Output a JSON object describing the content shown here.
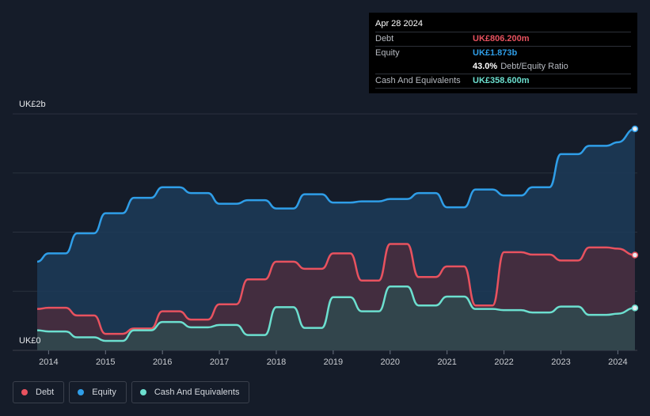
{
  "tooltip": {
    "date": "Apr 28 2024",
    "rows": [
      {
        "label": "Debt",
        "value": "UK£806.200m",
        "color": "#e8525f"
      },
      {
        "label": "Equity",
        "value": "UK£1.873b",
        "color": "#2f9ee8"
      },
      {
        "label": "",
        "value": "43.0%",
        "extra": "Debt/Equity Ratio",
        "color": "#ffffff"
      },
      {
        "label": "Cash And Equivalents",
        "value": "UK£358.600m",
        "color": "#6cdfcf"
      }
    ]
  },
  "legend": [
    {
      "label": "Debt",
      "color": "#e8525f"
    },
    {
      "label": "Equity",
      "color": "#2f9ee8"
    },
    {
      "label": "Cash And Equivalents",
      "color": "#6cdfcf"
    }
  ],
  "chart_data": {
    "type": "area",
    "title": "",
    "xlabel": "",
    "ylabel": "",
    "y_top_label": "UK£2b",
    "y_bottom_label": "UK£0",
    "ylim": [
      0,
      2000
    ],
    "xlim": [
      2013.8,
      2024.3
    ],
    "x_ticks": [
      2014,
      2015,
      2016,
      2017,
      2018,
      2019,
      2020,
      2021,
      2022,
      2023,
      2024
    ],
    "x_tick_labels": [
      "2014",
      "2015",
      "2016",
      "2017",
      "2018",
      "2019",
      "2020",
      "2021",
      "2022",
      "2023",
      "2024"
    ],
    "series": [
      {
        "name": "Equity",
        "color": "#2f9ee8",
        "fill": "#1c3b58",
        "points": [
          [
            2013.8,
            750
          ],
          [
            2014.0,
            820
          ],
          [
            2014.3,
            820
          ],
          [
            2014.5,
            990
          ],
          [
            2014.8,
            990
          ],
          [
            2015.0,
            1160
          ],
          [
            2015.3,
            1160
          ],
          [
            2015.5,
            1290
          ],
          [
            2015.8,
            1290
          ],
          [
            2016.0,
            1380
          ],
          [
            2016.3,
            1380
          ],
          [
            2016.5,
            1330
          ],
          [
            2016.8,
            1330
          ],
          [
            2017.0,
            1240
          ],
          [
            2017.3,
            1240
          ],
          [
            2017.5,
            1270
          ],
          [
            2017.8,
            1270
          ],
          [
            2018.0,
            1200
          ],
          [
            2018.3,
            1200
          ],
          [
            2018.5,
            1320
          ],
          [
            2018.8,
            1320
          ],
          [
            2019.0,
            1250
          ],
          [
            2019.3,
            1250
          ],
          [
            2019.5,
            1260
          ],
          [
            2019.8,
            1260
          ],
          [
            2020.0,
            1280
          ],
          [
            2020.3,
            1280
          ],
          [
            2020.5,
            1330
          ],
          [
            2020.8,
            1330
          ],
          [
            2021.0,
            1210
          ],
          [
            2021.3,
            1210
          ],
          [
            2021.5,
            1360
          ],
          [
            2021.8,
            1360
          ],
          [
            2022.0,
            1310
          ],
          [
            2022.3,
            1310
          ],
          [
            2022.5,
            1380
          ],
          [
            2022.8,
            1380
          ],
          [
            2023.0,
            1660
          ],
          [
            2023.3,
            1660
          ],
          [
            2023.5,
            1730
          ],
          [
            2023.8,
            1730
          ],
          [
            2024.0,
            1760
          ],
          [
            2024.3,
            1873
          ]
        ]
      },
      {
        "name": "Debt",
        "color": "#e8525f",
        "fill": "#4a2b3c",
        "points": [
          [
            2013.8,
            350
          ],
          [
            2014.0,
            360
          ],
          [
            2014.3,
            360
          ],
          [
            2014.5,
            295
          ],
          [
            2014.8,
            295
          ],
          [
            2015.0,
            140
          ],
          [
            2015.3,
            140
          ],
          [
            2015.5,
            185
          ],
          [
            2015.8,
            185
          ],
          [
            2016.0,
            330
          ],
          [
            2016.3,
            330
          ],
          [
            2016.5,
            260
          ],
          [
            2016.8,
            260
          ],
          [
            2017.0,
            390
          ],
          [
            2017.3,
            390
          ],
          [
            2017.5,
            600
          ],
          [
            2017.8,
            600
          ],
          [
            2018.0,
            750
          ],
          [
            2018.3,
            750
          ],
          [
            2018.5,
            690
          ],
          [
            2018.8,
            690
          ],
          [
            2019.0,
            820
          ],
          [
            2019.3,
            820
          ],
          [
            2019.5,
            590
          ],
          [
            2019.8,
            590
          ],
          [
            2020.0,
            900
          ],
          [
            2020.3,
            900
          ],
          [
            2020.5,
            620
          ],
          [
            2020.8,
            620
          ],
          [
            2021.0,
            710
          ],
          [
            2021.3,
            710
          ],
          [
            2021.5,
            380
          ],
          [
            2021.8,
            380
          ],
          [
            2022.0,
            830
          ],
          [
            2022.3,
            830
          ],
          [
            2022.5,
            810
          ],
          [
            2022.8,
            810
          ],
          [
            2023.0,
            760
          ],
          [
            2023.3,
            760
          ],
          [
            2023.5,
            870
          ],
          [
            2023.8,
            870
          ],
          [
            2024.0,
            860
          ],
          [
            2024.3,
            806
          ]
        ]
      },
      {
        "name": "Cash And Equivalents",
        "color": "#6cdfcf",
        "fill": "#2f4a4f",
        "points": [
          [
            2013.8,
            170
          ],
          [
            2014.0,
            160
          ],
          [
            2014.3,
            160
          ],
          [
            2014.5,
            110
          ],
          [
            2014.8,
            110
          ],
          [
            2015.0,
            80
          ],
          [
            2015.3,
            80
          ],
          [
            2015.5,
            170
          ],
          [
            2015.8,
            170
          ],
          [
            2016.0,
            240
          ],
          [
            2016.3,
            240
          ],
          [
            2016.5,
            195
          ],
          [
            2016.8,
            195
          ],
          [
            2017.0,
            215
          ],
          [
            2017.3,
            215
          ],
          [
            2017.5,
            130
          ],
          [
            2017.8,
            130
          ],
          [
            2018.0,
            365
          ],
          [
            2018.3,
            365
          ],
          [
            2018.5,
            190
          ],
          [
            2018.8,
            190
          ],
          [
            2019.0,
            450
          ],
          [
            2019.3,
            450
          ],
          [
            2019.5,
            330
          ],
          [
            2019.8,
            330
          ],
          [
            2020.0,
            540
          ],
          [
            2020.3,
            540
          ],
          [
            2020.5,
            380
          ],
          [
            2020.8,
            380
          ],
          [
            2021.0,
            455
          ],
          [
            2021.3,
            455
          ],
          [
            2021.5,
            350
          ],
          [
            2021.8,
            350
          ],
          [
            2022.0,
            340
          ],
          [
            2022.3,
            340
          ],
          [
            2022.5,
            320
          ],
          [
            2022.8,
            320
          ],
          [
            2023.0,
            370
          ],
          [
            2023.3,
            370
          ],
          [
            2023.5,
            300
          ],
          [
            2023.8,
            300
          ],
          [
            2024.0,
            310
          ],
          [
            2024.3,
            358.6
          ]
        ]
      }
    ],
    "grid": true,
    "legend_position": "bottom-left"
  }
}
